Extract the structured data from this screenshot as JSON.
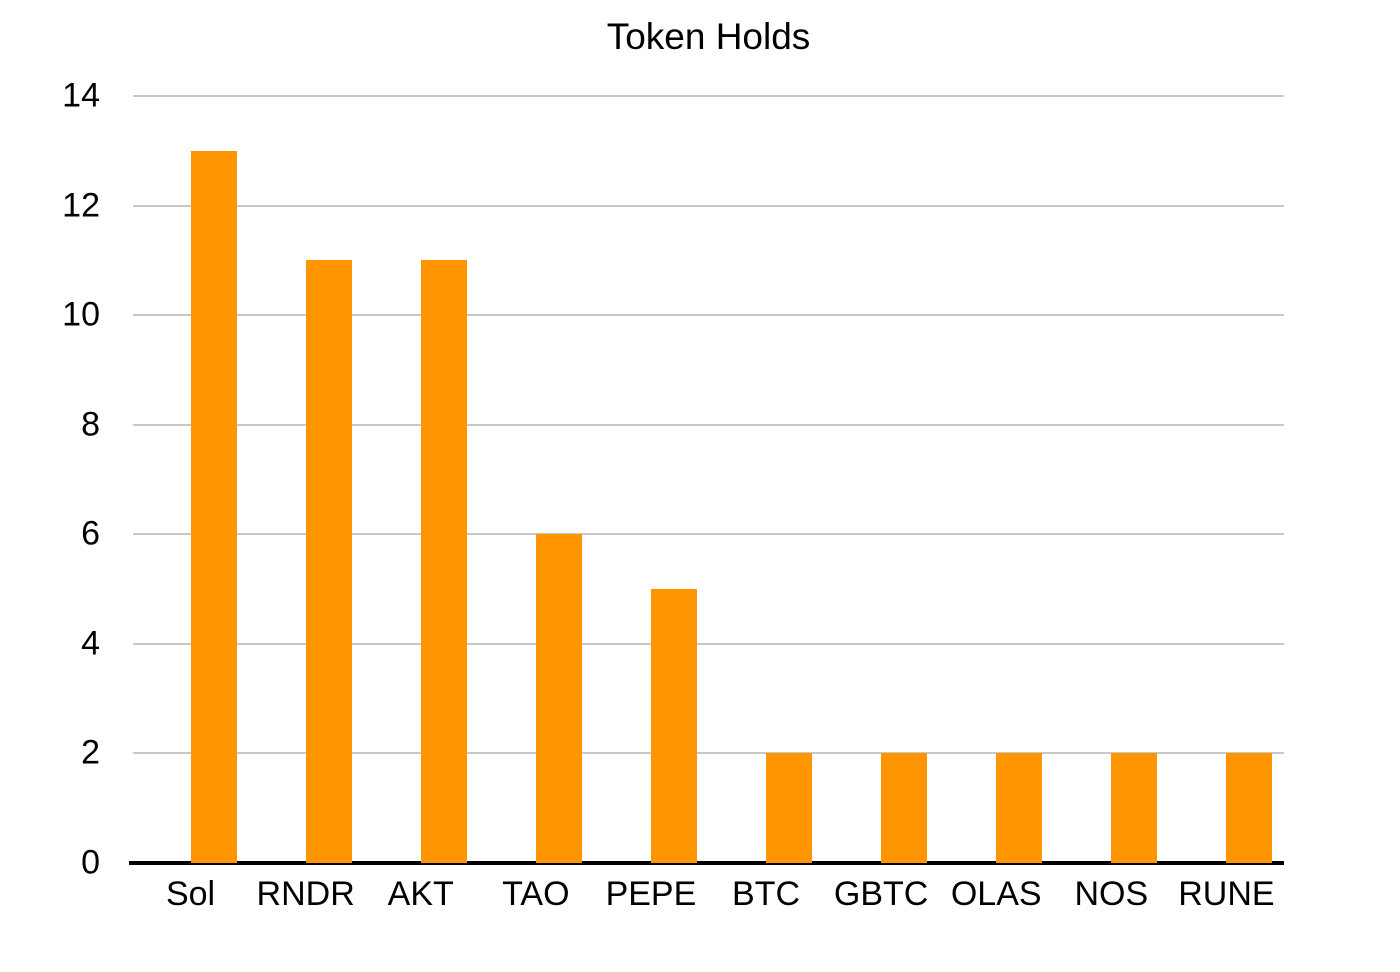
{
  "chart_data": {
    "type": "bar",
    "title": "Token Holds",
    "categories": [
      "Sol",
      "RNDR",
      "AKT",
      "TAO",
      "PEPE",
      "BTC",
      "GBTC",
      "OLAS",
      "NOS",
      "RUNE"
    ],
    "values": [
      13,
      11,
      11,
      6,
      5,
      2,
      2,
      2,
      2,
      2
    ],
    "xlabel": "",
    "ylabel": "",
    "ylim": [
      0,
      14
    ],
    "yticks": [
      0,
      2,
      4,
      6,
      8,
      10,
      12,
      14
    ],
    "grid": true,
    "legend_position": "none",
    "bar_color": "#FF9500",
    "gridline_color": "#C8C8C8",
    "axis_color": "#000000",
    "text_color": "#000000",
    "background_color": "#FFFFFF"
  }
}
